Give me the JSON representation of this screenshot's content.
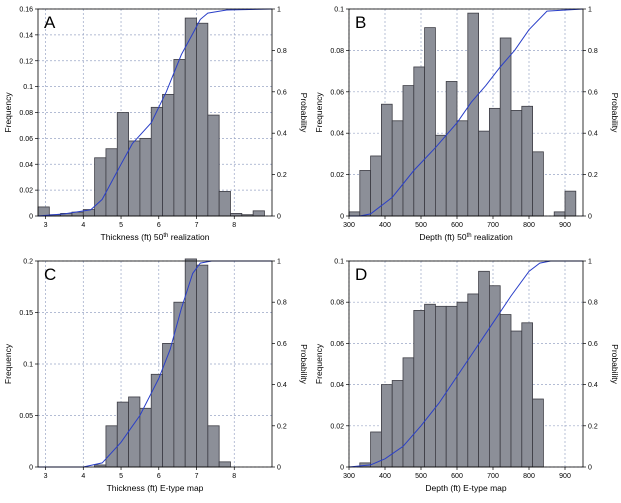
{
  "chart_data": [
    {
      "panel": "A",
      "type": "bar",
      "xlabel": "Thickness (ft) 50",
      "xlabel_sup": "th",
      "xlabel_tail": " realization",
      "ylabel": "Frequency",
      "y2label": "Probability",
      "xlim": [
        2.8,
        9.0
      ],
      "ylim": [
        0,
        0.16
      ],
      "y2lim": [
        0,
        1
      ],
      "xticks": [
        3,
        4,
        5,
        6,
        7,
        8
      ],
      "yticks": [
        0,
        0.02,
        0.04,
        0.06,
        0.08,
        0.1,
        0.12,
        0.14,
        0.16
      ],
      "y2ticks": [
        0,
        0.2,
        0.4,
        0.6,
        0.8,
        1
      ],
      "bin_edges": [
        2.8,
        3.1,
        3.4,
        3.7,
        4.0,
        4.3,
        4.6,
        4.9,
        5.2,
        5.5,
        5.8,
        6.1,
        6.4,
        6.7,
        7.0,
        7.3,
        7.6,
        7.9,
        8.2,
        8.5,
        8.8,
        9.0
      ],
      "values": [
        0.007,
        0.001,
        0.002,
        0.003,
        0.005,
        0.045,
        0.052,
        0.08,
        0.058,
        0.06,
        0.084,
        0.094,
        0.121,
        0.153,
        0.149,
        0.078,
        0.019,
        0.002,
        0.001,
        0.004,
        0.0
      ],
      "cdf": {
        "x": [
          2.8,
          3.5,
          4.2,
          4.5,
          5.0,
          5.3,
          5.8,
          6.2,
          6.6,
          6.9,
          7.1,
          7.3,
          7.8,
          9.0
        ],
        "y": [
          0.0,
          0.01,
          0.03,
          0.08,
          0.25,
          0.35,
          0.45,
          0.6,
          0.78,
          0.88,
          0.95,
          0.98,
          0.995,
          1.0
        ]
      }
    },
    {
      "panel": "B",
      "type": "bar",
      "xlabel": "Depth (ft) 50",
      "xlabel_sup": "th",
      "xlabel_tail": " realization",
      "ylabel": "Frequency",
      "y2label": "Probability",
      "xlim": [
        300,
        950
      ],
      "ylim": [
        0,
        0.1
      ],
      "y2lim": [
        0,
        1
      ],
      "xticks": [
        300,
        400,
        500,
        600,
        700,
        800,
        900
      ],
      "yticks": [
        0,
        0.02,
        0.04,
        0.06,
        0.08,
        0.1
      ],
      "y2ticks": [
        0,
        0.2,
        0.4,
        0.6,
        0.8,
        1
      ],
      "bin_edges": [
        300,
        330,
        360,
        390,
        420,
        450,
        480,
        510,
        540,
        570,
        600,
        630,
        660,
        690,
        720,
        750,
        780,
        810,
        840,
        870,
        900,
        930,
        950
      ],
      "values": [
        0.002,
        0.022,
        0.029,
        0.054,
        0.046,
        0.063,
        0.072,
        0.091,
        0.039,
        0.065,
        0.046,
        0.098,
        0.041,
        0.052,
        0.086,
        0.051,
        0.053,
        0.031,
        0.0,
        0.002,
        0.012,
        0.0
      ],
      "cdf": {
        "x": [
          300,
          330,
          360,
          420,
          480,
          540,
          600,
          640,
          680,
          720,
          760,
          800,
          850,
          950
        ],
        "y": [
          0.0,
          0.0,
          0.01,
          0.09,
          0.22,
          0.33,
          0.45,
          0.55,
          0.63,
          0.72,
          0.8,
          0.9,
          0.99,
          1.0
        ]
      }
    },
    {
      "panel": "C",
      "type": "bar",
      "xlabel": "Thickness (ft) E-type map",
      "xlabel_sup": "",
      "xlabel_tail": "",
      "ylabel": "Frequency",
      "y2label": "Probability",
      "xlim": [
        2.8,
        9.0
      ],
      "ylim": [
        0,
        0.2
      ],
      "y2lim": [
        0,
        1
      ],
      "xticks": [
        3,
        4,
        5,
        6,
        7,
        8
      ],
      "yticks": [
        0,
        0.05,
        0.1,
        0.15,
        0.2
      ],
      "y2ticks": [
        0,
        0.2,
        0.4,
        0.6,
        0.8,
        1
      ],
      "bin_edges": [
        2.8,
        3.1,
        3.4,
        3.7,
        4.0,
        4.3,
        4.6,
        4.9,
        5.2,
        5.5,
        5.8,
        6.1,
        6.4,
        6.7,
        7.0,
        7.3,
        7.6,
        7.9,
        8.2,
        8.5,
        8.8,
        9.0
      ],
      "values": [
        0.0,
        0.0,
        0.0,
        0.0,
        0.0,
        0.002,
        0.04,
        0.063,
        0.068,
        0.057,
        0.09,
        0.12,
        0.16,
        0.202,
        0.196,
        0.04,
        0.005,
        0.0,
        0.0,
        0.0,
        0.0
      ],
      "cdf": {
        "x": [
          2.8,
          4.0,
          4.5,
          5.0,
          5.5,
          6.0,
          6.3,
          6.6,
          6.9,
          7.1,
          7.4,
          9.0
        ],
        "y": [
          0.0,
          0.0,
          0.02,
          0.12,
          0.25,
          0.43,
          0.57,
          0.77,
          0.94,
          0.99,
          1.0,
          1.0
        ]
      }
    },
    {
      "panel": "D",
      "type": "bar",
      "xlabel": "Depth (ft) E-type map",
      "xlabel_sup": "",
      "xlabel_tail": "",
      "ylabel": "Frequency",
      "y2label": "Probability",
      "xlim": [
        300,
        950
      ],
      "ylim": [
        0,
        0.1
      ],
      "y2lim": [
        0,
        1
      ],
      "xticks": [
        300,
        400,
        500,
        600,
        700,
        800,
        900
      ],
      "yticks": [
        0,
        0.02,
        0.04,
        0.06,
        0.08,
        0.1
      ],
      "y2ticks": [
        0,
        0.2,
        0.4,
        0.6,
        0.8,
        1
      ],
      "bin_edges": [
        300,
        330,
        360,
        390,
        420,
        450,
        480,
        510,
        540,
        570,
        600,
        630,
        660,
        690,
        720,
        750,
        780,
        810,
        840,
        870,
        900,
        930,
        950
      ],
      "values": [
        0.0,
        0.002,
        0.017,
        0.04,
        0.042,
        0.053,
        0.076,
        0.079,
        0.078,
        0.078,
        0.08,
        0.084,
        0.095,
        0.088,
        0.074,
        0.066,
        0.07,
        0.033,
        0.0,
        0.0,
        0.0,
        0.0
      ],
      "cdf": {
        "x": [
          300,
          360,
          400,
          450,
          500,
          550,
          600,
          650,
          700,
          750,
          800,
          830,
          860,
          950
        ],
        "y": [
          0.0,
          0.01,
          0.04,
          0.1,
          0.2,
          0.31,
          0.44,
          0.57,
          0.7,
          0.83,
          0.95,
          0.99,
          1.0,
          1.0
        ]
      }
    }
  ],
  "style": {
    "bar_fill": "#8c8f98",
    "bar_stroke": "#3c3c44",
    "cdf_color": "#2a3fc8",
    "grid_color": "#9aa6c6"
  }
}
